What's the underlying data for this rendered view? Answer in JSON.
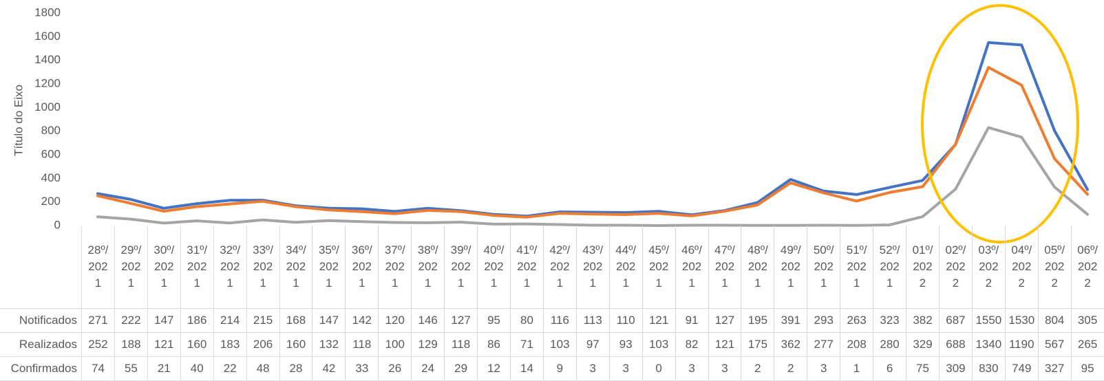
{
  "chart_data": {
    "type": "line",
    "y_axis_title": "Título do Eixo",
    "categories": [
      "28º/2021",
      "29º/2021",
      "30º/2021",
      "31º/2021",
      "32º/2021",
      "33º/2021",
      "34º/2021",
      "35º/2021",
      "36º/2021",
      "37º/2021",
      "38º/2021",
      "39º/2021",
      "40º/2021",
      "41º/2021",
      "42º/2021",
      "43º/2021",
      "44º/2021",
      "45º/2021",
      "46º/2021",
      "47º/2021",
      "48º/2021",
      "49º/2021",
      "50º/2021",
      "51º/2021",
      "52º/2021",
      "01º/2022",
      "02º/2022",
      "03º/2022",
      "04º/2022",
      "05º/2022",
      "06º/2022"
    ],
    "series": [
      {
        "name": "Notificados",
        "color": "#4472c4",
        "values": [
          271,
          222,
          147,
          186,
          214,
          215,
          168,
          147,
          142,
          120,
          146,
          127,
          95,
          80,
          116,
          113,
          110,
          121,
          91,
          127,
          195,
          391,
          293,
          263,
          323,
          382,
          687,
          1550,
          1530,
          804,
          305
        ]
      },
      {
        "name": "Realizados",
        "color": "#ed7d31",
        "values": [
          252,
          188,
          121,
          160,
          183,
          206,
          160,
          132,
          118,
          100,
          129,
          118,
          86,
          71,
          103,
          97,
          93,
          103,
          82,
          121,
          175,
          362,
          277,
          208,
          280,
          329,
          688,
          1340,
          1190,
          567,
          265
        ]
      },
      {
        "name": "Confirmados",
        "color": "#a5a5a5",
        "values": [
          74,
          55,
          21,
          40,
          22,
          48,
          28,
          42,
          33,
          26,
          24,
          29,
          12,
          14,
          9,
          3,
          3,
          0,
          3,
          3,
          2,
          2,
          3,
          1,
          6,
          75,
          309,
          830,
          749,
          327,
          95
        ]
      }
    ],
    "ylim": [
      0,
      1800
    ],
    "yticks": [
      0,
      200,
      400,
      600,
      800,
      1000,
      1200,
      1400,
      1600,
      1800
    ],
    "grid": false,
    "data_table": true
  }
}
